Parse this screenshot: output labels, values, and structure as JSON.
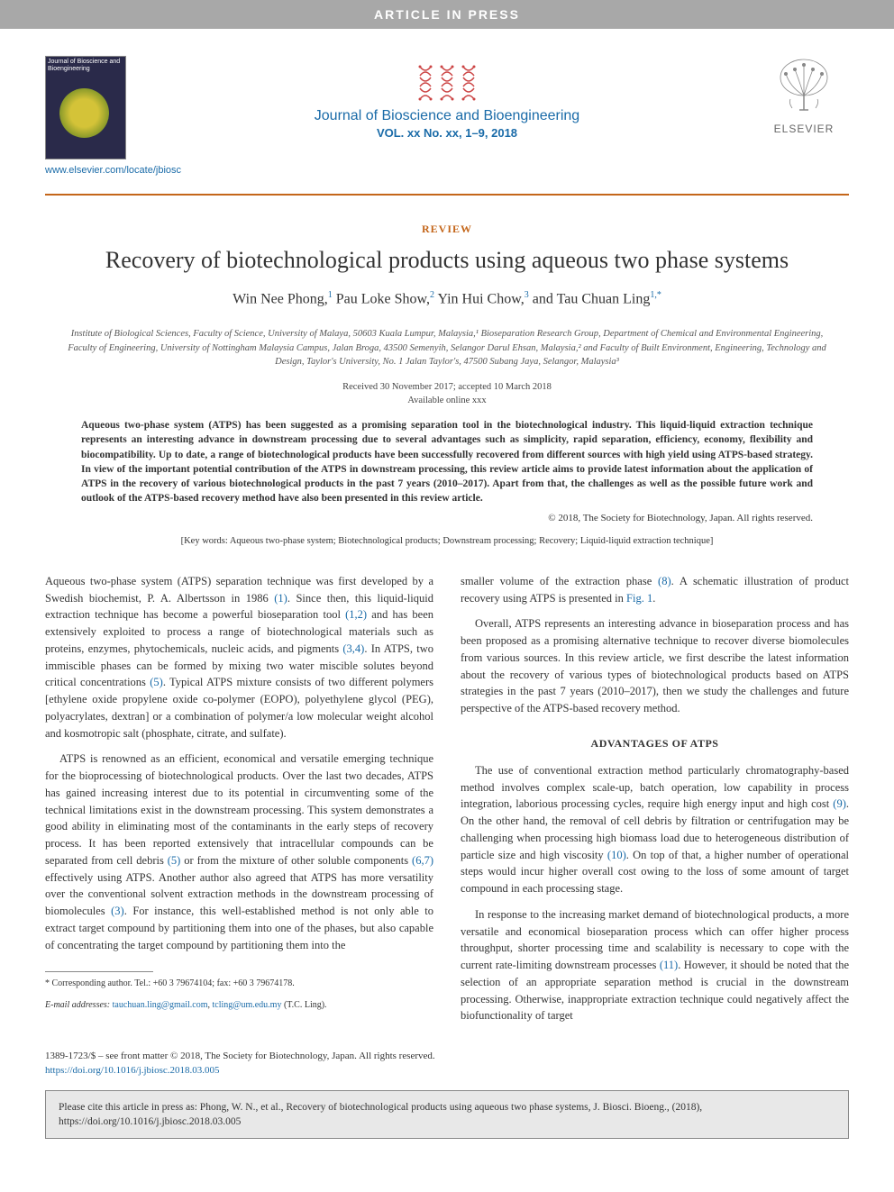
{
  "banner": "ARTICLE IN PRESS",
  "header": {
    "cover_caption": "Journal of Bioscience and Bioengineering",
    "journal_link": "www.elsevier.com/locate/jbiosc",
    "journal_name": "Journal of Bioscience and Bioengineering",
    "journal_vol": "VOL. xx No. xx, 1–9, 2018",
    "publisher": "ELSEVIER"
  },
  "article_type": "REVIEW",
  "title": "Recovery of biotechnological products using aqueous two phase systems",
  "authors_html": "Win Nee Phong,<sup>1</sup> Pau Loke Show,<sup>2</sup> Yin Hui Chow,<sup>3</sup> and Tau Chuan Ling<sup>1,*</sup>",
  "affiliations": "Institute of Biological Sciences, Faculty of Science, University of Malaya, 50603 Kuala Lumpur, Malaysia,¹ Bioseparation Research Group, Department of Chemical and Environmental Engineering, Faculty of Engineering, University of Nottingham Malaysia Campus, Jalan Broga, 43500 Semenyih, Selangor Darul Ehsan, Malaysia,² and Faculty of Built Environment, Engineering, Technology and Design, Taylor's University, No. 1 Jalan Taylor's, 47500 Subang Jaya, Selangor, Malaysia³",
  "dates": {
    "received": "Received 30 November 2017; accepted 10 March 2018",
    "online": "Available online xxx"
  },
  "abstract": "Aqueous two-phase system (ATPS) has been suggested as a promising separation tool in the biotechnological industry. This liquid-liquid extraction technique represents an interesting advance in downstream processing due to several advantages such as simplicity, rapid separation, efficiency, economy, flexibility and biocompatibility. Up to date, a range of biotechnological products have been successfully recovered from different sources with high yield using ATPS-based strategy. In view of the important potential contribution of the ATPS in downstream processing, this review article aims to provide latest information about the application of ATPS in the recovery of various biotechnological products in the past 7 years (2010–2017). Apart from that, the challenges as well as the possible future work and outlook of the ATPS-based recovery method have also been presented in this review article.",
  "copyright": "© 2018, The Society for Biotechnology, Japan. All rights reserved.",
  "keywords": "[Key words: Aqueous two-phase system; Biotechnological products; Downstream processing; Recovery; Liquid-liquid extraction technique]",
  "body": {
    "left": {
      "p1": "Aqueous two-phase system (ATPS) separation technique was first developed by a Swedish biochemist, P. A. Albertsson in 1986 (1). Since then, this liquid-liquid extraction technique has become a powerful bioseparation tool (1,2) and has been extensively exploited to process a range of biotechnological materials such as proteins, enzymes, phytochemicals, nucleic acids, and pigments (3,4). In ATPS, two immiscible phases can be formed by mixing two water miscible solutes beyond critical concentrations (5). Typical ATPS mixture consists of two different polymers [ethylene oxide propylene oxide co-polymer (EOPO), polyethylene glycol (PEG), polyacrylates, dextran] or a combination of polymer/a low molecular weight alcohol and kosmotropic salt (phosphate, citrate, and sulfate).",
      "p2": "ATPS is renowned as an efficient, economical and versatile emerging technique for the bioprocessing of biotechnological products. Over the last two decades, ATPS has gained increasing interest due to its potential in circumventing some of the technical limitations exist in the downstream processing. This system demonstrates a good ability in eliminating most of the contaminants in the early steps of recovery process. It has been reported extensively that intracellular compounds can be separated from cell debris (5) or from the mixture of other soluble components (6,7) effectively using ATPS. Another author also agreed that ATPS has more versatility over the conventional solvent extraction methods in the downstream processing of biomolecules (3). For instance, this well-established method is not only able to extract target compound by partitioning them into one of the phases, but also capable of concentrating the target compound by partitioning them into the"
    },
    "right": {
      "p1": "smaller volume of the extraction phase (8). A schematic illustration of product recovery using ATPS is presented in Fig. 1.",
      "p2": "Overall, ATPS represents an interesting advance in bioseparation process and has been proposed as a promising alternative technique to recover diverse biomolecules from various sources. In this review article, we first describe the latest information about the recovery of various types of biotechnological products based on ATPS strategies in the past 7 years (2010–2017), then we study the challenges and future perspective of the ATPS-based recovery method.",
      "section_head": "ADVANTAGES OF ATPS",
      "p3": "The use of conventional extraction method particularly chromatography-based method involves complex scale-up, batch operation, low capability in process integration, laborious processing cycles, require high energy input and high cost (9). On the other hand, the removal of cell debris by filtration or centrifugation may be challenging when processing high biomass load due to heterogeneous distribution of particle size and high viscosity (10). On top of that, a higher number of operational steps would incur higher overall cost owing to the loss of some amount of target compound in each processing stage.",
      "p4": "In response to the increasing market demand of biotechnological products, a more versatile and economical bioseparation process which can offer higher process throughput, shorter processing time and scalability is necessary to cope with the current rate-limiting downstream processes (11). However, it should be noted that the selection of an appropriate separation method is crucial in the downstream processing. Otherwise, inappropriate extraction technique could negatively affect the biofunctionality of target"
    }
  },
  "footnote": {
    "corresponding": "* Corresponding author. Tel.: +60 3 79674104; fax: +60 3 79674178.",
    "email_label": "E-mail addresses:",
    "email1": "tauchuan.ling@gmail.com",
    "email2": "tcling@um.edu.my",
    "email_tail": "(T.C. Ling)."
  },
  "footer": {
    "issn": "1389-1723/$ – see front matter © 2018, The Society for Biotechnology, Japan. All rights reserved.",
    "doi": "https://doi.org/10.1016/j.jbiosc.2018.03.005"
  },
  "citation": "Please cite this article in press as: Phong, W. N., et al., Recovery of biotechnological products using aqueous two phase systems, J. Biosci. Bioeng., (2018), https://doi.org/10.1016/j.jbiosc.2018.03.005",
  "refs": {
    "r1": "(1)",
    "r12": "(1,2)",
    "r34": "(3,4)",
    "r5": "(5)",
    "r5b": "(5)",
    "r67": "(6,7)",
    "r3": "(3)",
    "r8": "(8)",
    "fig1": "Fig. 1",
    "r9": "(9)",
    "r10": "(10)",
    "r11": "(11)"
  },
  "colors": {
    "banner_bg": "#a8a8a8",
    "accent_orange": "#c4661a",
    "link_blue": "#1a6ba8",
    "text": "#333333",
    "citation_bg": "#e8e8e8"
  }
}
